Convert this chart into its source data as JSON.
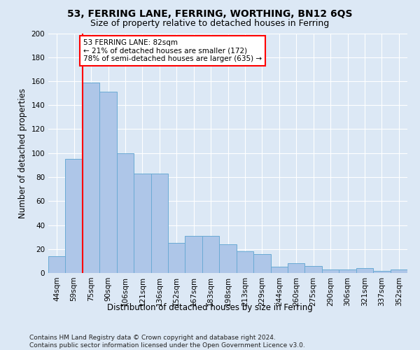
{
  "title": "53, FERRING LANE, FERRING, WORTHING, BN12 6QS",
  "subtitle": "Size of property relative to detached houses in Ferring",
  "xlabel": "Distribution of detached houses by size in Ferring",
  "ylabel": "Number of detached properties",
  "categories": [
    "44sqm",
    "59sqm",
    "75sqm",
    "90sqm",
    "106sqm",
    "121sqm",
    "136sqm",
    "152sqm",
    "167sqm",
    "183sqm",
    "198sqm",
    "213sqm",
    "229sqm",
    "244sqm",
    "260sqm",
    "275sqm",
    "290sqm",
    "306sqm",
    "321sqm",
    "337sqm",
    "352sqm"
  ],
  "values": [
    14,
    95,
    159,
    151,
    100,
    83,
    83,
    25,
    31,
    31,
    24,
    18,
    16,
    5,
    8,
    6,
    3,
    3,
    4,
    2,
    3
  ],
  "bar_color": "#aec6e8",
  "bar_edge_color": "#6aaad4",
  "vline_color": "red",
  "annotation_text": "53 FERRING LANE: 82sqm\n← 21% of detached houses are smaller (172)\n78% of semi-detached houses are larger (635) →",
  "annotation_box_color": "white",
  "annotation_box_edge_color": "red",
  "ylim": [
    0,
    200
  ],
  "yticks": [
    0,
    20,
    40,
    60,
    80,
    100,
    120,
    140,
    160,
    180,
    200
  ],
  "footnote": "Contains HM Land Registry data © Crown copyright and database right 2024.\nContains public sector information licensed under the Open Government Licence v3.0.",
  "background_color": "#dce8f5",
  "plot_background_color": "#dce8f5",
  "title_fontsize": 10,
  "subtitle_fontsize": 9,
  "axis_label_fontsize": 8.5,
  "tick_fontsize": 7.5,
  "annotation_fontsize": 7.5,
  "footnote_fontsize": 6.5
}
